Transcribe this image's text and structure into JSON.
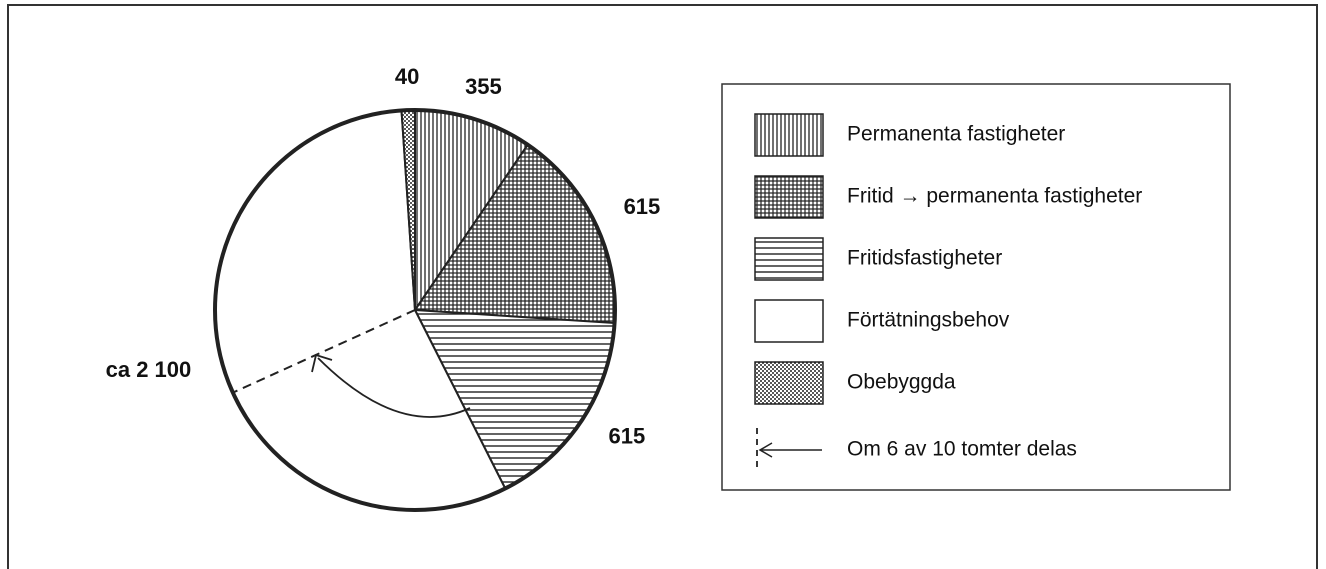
{
  "chart_data": {
    "type": "pie",
    "categories": [
      "Permanenta fastigheter",
      "Fritid → permanenta fastigheter",
      "Fritidsfastigheter",
      "Förtätningsbehov",
      "Obebyggda"
    ],
    "values": [
      355,
      615,
      615,
      2100,
      40
    ],
    "value_labels": [
      "355",
      "615",
      "615",
      "ca 2 100",
      "40"
    ],
    "patterns": [
      "vertical",
      "grid",
      "horizontal",
      "none",
      "dots"
    ],
    "annotation": "Om 6 av 10 tomter delas"
  }
}
